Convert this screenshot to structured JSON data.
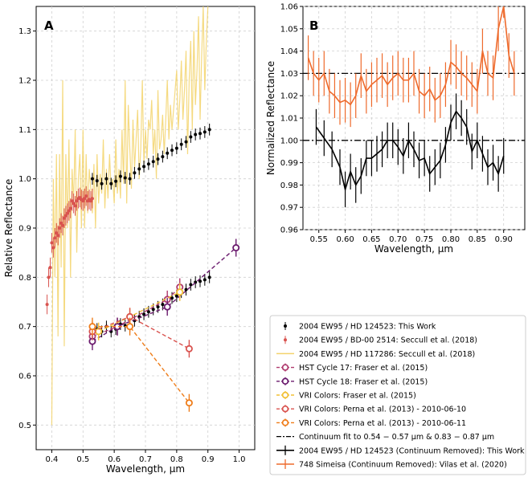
{
  "chart_data": [
    {
      "panel": "A",
      "type": "scatter",
      "xlabel": "Wavelength, μm",
      "ylabel": "Relative Reflectance",
      "xlim": [
        0.35,
        1.05
      ],
      "ylim": [
        0.45,
        1.35
      ],
      "xticks": [
        "0.4",
        "0.5",
        "0.6",
        "0.7",
        "0.8",
        "0.9",
        "1.0"
      ],
      "yticks": [
        "0.5",
        "0.6",
        "0.7",
        "0.8",
        "0.9",
        "1.0",
        "1.1",
        "1.2",
        "1.3"
      ],
      "series": [
        {
          "name": "2004 EW95 / HD 124523: This Work (upper)",
          "color": "#000000",
          "style": "errorbar",
          "x": [
            0.53,
            0.545,
            0.56,
            0.575,
            0.59,
            0.605,
            0.62,
            0.635,
            0.65,
            0.665,
            0.68,
            0.695,
            0.71,
            0.725,
            0.74,
            0.755,
            0.77,
            0.785,
            0.8,
            0.815,
            0.83,
            0.845,
            0.86,
            0.875,
            0.89,
            0.905
          ],
          "y": [
            1.0,
            0.996,
            0.99,
            1.0,
            0.99,
            0.995,
            1.005,
            1.002,
            1.0,
            1.012,
            1.02,
            1.025,
            1.03,
            1.035,
            1.04,
            1.045,
            1.052,
            1.058,
            1.062,
            1.07,
            1.075,
            1.085,
            1.09,
            1.092,
            1.095,
            1.1
          ]
        },
        {
          "name": "2004 EW95 / HD 124523: This Work (lower)",
          "color": "#000000",
          "style": "errorbar",
          "x": [
            0.53,
            0.545,
            0.56,
            0.575,
            0.59,
            0.605,
            0.62,
            0.635,
            0.65,
            0.665,
            0.68,
            0.695,
            0.71,
            0.725,
            0.74,
            0.755,
            0.77,
            0.785,
            0.8,
            0.815,
            0.83,
            0.845,
            0.86,
            0.875,
            0.89,
            0.905
          ],
          "y": [
            0.7,
            0.695,
            0.69,
            0.7,
            0.69,
            0.695,
            0.705,
            0.702,
            0.7,
            0.712,
            0.72,
            0.725,
            0.73,
            0.735,
            0.74,
            0.745,
            0.752,
            0.758,
            0.762,
            0.77,
            0.775,
            0.785,
            0.79,
            0.792,
            0.795,
            0.8
          ]
        },
        {
          "name": "2004 EW95 / BD-00 2514: Seccull et al. (2018)",
          "color": "#d9534f",
          "style": "errorbar",
          "x": [
            0.385,
            0.39,
            0.395,
            0.4,
            0.405,
            0.41,
            0.415,
            0.42,
            0.425,
            0.43,
            0.435,
            0.44,
            0.445,
            0.45,
            0.455,
            0.46,
            0.465,
            0.47,
            0.475,
            0.48,
            0.485,
            0.49,
            0.495,
            0.5,
            0.505,
            0.51,
            0.515,
            0.52,
            0.525,
            0.53
          ],
          "y": [
            0.745,
            0.8,
            0.82,
            0.87,
            0.86,
            0.88,
            0.89,
            0.885,
            0.9,
            0.91,
            0.905,
            0.92,
            0.925,
            0.93,
            0.935,
            0.94,
            0.955,
            0.95,
            0.945,
            0.955,
            0.96,
            0.962,
            0.958,
            0.955,
            0.96,
            0.965,
            0.955,
            0.958,
            0.955,
            0.96
          ]
        },
        {
          "name": "2004 EW95 / HD 117286: Seccull et al. (2018)",
          "color": "#f3d36b",
          "style": "line",
          "x": [
            0.4,
            0.405,
            0.41,
            0.415,
            0.42,
            0.425,
            0.43,
            0.435,
            0.44,
            0.445,
            0.45,
            0.455,
            0.46,
            0.465,
            0.47,
            0.475,
            0.48,
            0.485,
            0.49,
            0.495,
            0.5,
            0.505,
            0.51,
            0.515,
            0.52,
            0.525,
            0.53,
            0.535,
            0.54,
            0.545,
            0.55,
            0.555,
            0.56,
            0.565,
            0.57,
            0.575,
            0.58,
            0.585,
            0.59,
            0.595,
            0.6,
            0.605,
            0.61,
            0.615,
            0.62,
            0.625,
            0.63,
            0.635,
            0.64,
            0.645,
            0.65,
            0.655,
            0.66,
            0.665,
            0.67,
            0.675,
            0.68,
            0.685,
            0.69,
            0.695,
            0.7,
            0.705,
            0.71,
            0.715,
            0.72,
            0.725,
            0.73,
            0.735,
            0.74,
            0.745,
            0.75,
            0.755,
            0.76,
            0.765,
            0.77,
            0.775,
            0.78,
            0.785,
            0.79,
            0.795,
            0.8,
            0.805,
            0.81,
            0.815,
            0.82,
            0.825,
            0.83,
            0.835,
            0.84,
            0.845,
            0.85,
            0.855,
            0.86,
            0.865,
            0.87,
            0.875,
            0.88,
            0.885,
            0.89,
            0.895,
            0.9
          ],
          "y": [
            0.5,
            1.0,
            0.8,
            1.05,
            0.68,
            1.05,
            0.82,
            1.2,
            0.66,
            1.05,
            0.9,
            1.08,
            0.8,
            1.02,
            0.95,
            1.1,
            0.85,
            1.0,
            1.05,
            0.9,
            1.1,
            0.9,
            1.05,
            0.93,
            1.02,
            0.98,
            0.93,
            1.03,
            0.9,
            1.05,
            0.95,
            1.01,
            0.97,
            1.08,
            0.94,
            1.02,
            0.96,
            1.05,
            0.98,
            1.0,
            0.95,
            1.08,
            0.97,
            1.02,
            0.96,
            1.1,
            0.99,
            1.2,
            0.95,
            1.15,
            1.06,
            0.98,
            1.12,
            1.02,
            1.08,
            1.14,
            1.0,
            1.06,
            1.2,
            1.03,
            1.1,
            1.04,
            1.12,
            1.1,
            1.16,
            1.05,
            1.1,
            1.0,
            1.18,
            1.06,
            1.08,
            1.13,
            1.05,
            1.12,
            1.2,
            1.08,
            1.15,
            1.1,
            1.14,
            1.18,
            1.22,
            1.1,
            1.16,
            1.24,
            1.12,
            1.18,
            1.26,
            1.05,
            1.2,
            1.28,
            1.1,
            1.3,
            1.15,
            1.22,
            1.33,
            1.12,
            1.25,
            1.35,
            1.18,
            1.28,
            1.35
          ]
        },
        {
          "name": "HST Cycle 17: Fraser et al. (2015)",
          "color": "#b03a6e",
          "style": "dashed-marker",
          "x": [
            0.53,
            0.61,
            0.77,
            0.81
          ],
          "y": [
            0.68,
            0.7,
            0.755,
            0.78
          ]
        },
        {
          "name": "HST Cycle 18: Fraser et al. (2015)",
          "color": "#6b1b6e",
          "style": "dashed-marker",
          "x": [
            0.53,
            0.61,
            0.77,
            0.99
          ],
          "y": [
            0.67,
            0.7,
            0.74,
            0.86
          ]
        },
        {
          "name": "VRI Colors: Fraser et al. (2015)",
          "color": "#f2c037",
          "style": "dashed-marker",
          "x": [
            0.55,
            0.65,
            0.81
          ],
          "y": [
            0.69,
            0.72,
            0.77
          ]
        },
        {
          "name": "VRI Colors: Perna et al. (2013) - 2010-06-10",
          "color": "#d9534f",
          "style": "dashed-marker",
          "x": [
            0.53,
            0.65,
            0.84
          ],
          "y": [
            0.69,
            0.72,
            0.655
          ]
        },
        {
          "name": "VRI Colors: Perna et al. (2013) - 2010-06-11",
          "color": "#ef7d1a",
          "style": "dashed-marker",
          "x": [
            0.53,
            0.65,
            0.84
          ],
          "y": [
            0.7,
            0.7,
            0.545
          ]
        }
      ]
    },
    {
      "panel": "B",
      "type": "line",
      "xlabel": "Wavelength, μm",
      "ylabel": "Normalized Reflectance",
      "xlim": [
        0.52,
        0.94
      ],
      "ylim": [
        0.96,
        1.06
      ],
      "xticks": [
        "0.55",
        "0.60",
        "0.65",
        "0.70",
        "0.75",
        "0.80",
        "0.85",
        "0.90"
      ],
      "yticks": [
        "0.96",
        "0.97",
        "0.98",
        "0.99",
        "1.00",
        "1.01",
        "1.02",
        "1.03",
        "1.04",
        "1.05",
        "1.06"
      ],
      "continuum_levels": [
        1.0,
        1.03
      ],
      "series": [
        {
          "name": "2004 EW95 / HD 124523 (Continuum Removed): This Work",
          "color": "#000000",
          "x": [
            0.545,
            0.56,
            0.575,
            0.59,
            0.6,
            0.61,
            0.62,
            0.63,
            0.64,
            0.65,
            0.66,
            0.67,
            0.68,
            0.69,
            0.7,
            0.71,
            0.72,
            0.73,
            0.74,
            0.75,
            0.76,
            0.77,
            0.78,
            0.79,
            0.8,
            0.81,
            0.82,
            0.83,
            0.84,
            0.85,
            0.86,
            0.87,
            0.88,
            0.89,
            0.9
          ],
          "y": [
            1.006,
            1.001,
            0.996,
            0.988,
            0.978,
            0.986,
            0.98,
            0.984,
            0.992,
            0.992,
            0.994,
            0.996,
            1.0,
            1.0,
            0.997,
            0.993,
            1.0,
            0.996,
            0.991,
            0.992,
            0.985,
            0.988,
            0.991,
            0.998,
            1.008,
            1.013,
            1.01,
            1.006,
            0.995,
            1.0,
            0.994,
            0.988,
            0.99,
            0.985,
            0.993
          ]
        },
        {
          "name": "748 Simeisa (Continuum Removed): Vilas et al. (2020)",
          "color": "#ee6a2c",
          "x": [
            0.53,
            0.54,
            0.55,
            0.56,
            0.57,
            0.58,
            0.59,
            0.6,
            0.61,
            0.62,
            0.63,
            0.64,
            0.65,
            0.66,
            0.67,
            0.68,
            0.69,
            0.7,
            0.71,
            0.72,
            0.73,
            0.74,
            0.75,
            0.76,
            0.77,
            0.78,
            0.79,
            0.8,
            0.81,
            0.82,
            0.83,
            0.84,
            0.85,
            0.86,
            0.87,
            0.88,
            0.89,
            0.9,
            0.91,
            0.92
          ],
          "y": [
            1.037,
            1.03,
            1.027,
            1.03,
            1.022,
            1.02,
            1.017,
            1.018,
            1.016,
            1.02,
            1.029,
            1.022,
            1.025,
            1.027,
            1.029,
            1.025,
            1.028,
            1.03,
            1.027,
            1.027,
            1.03,
            1.022,
            1.02,
            1.023,
            1.018,
            1.02,
            1.025,
            1.035,
            1.033,
            1.03,
            1.028,
            1.025,
            1.022,
            1.04,
            1.03,
            1.028,
            1.05,
            1.065,
            1.038,
            1.03
          ]
        }
      ]
    }
  ],
  "legend": [
    {
      "label": "2004 EW95 / HD 124523: This Work",
      "color": "#000000",
      "kind": "errorbar"
    },
    {
      "label": "2004 EW95 / BD-00 2514: Seccull et al. (2018)",
      "color": "#d9534f",
      "kind": "errorbar"
    },
    {
      "label": "2004 EW95 / HD 117286: Seccull et al. (2018)",
      "color": "#f3d36b",
      "kind": "line"
    },
    {
      "label": "HST Cycle 17: Fraser et al. (2015)",
      "color": "#b03a6e",
      "kind": "open"
    },
    {
      "label": "HST Cycle 18: Fraser et al. (2015)",
      "color": "#6b1b6e",
      "kind": "open"
    },
    {
      "label": "VRI Colors: Fraser et al. (2015)",
      "color": "#f2c037",
      "kind": "open"
    },
    {
      "label": "VRI Colors: Perna et al. (2013) - 2010-06-10",
      "color": "#d9534f",
      "kind": "open"
    },
    {
      "label": "VRI Colors: Perna et al. (2013) - 2010-06-11",
      "color": "#ef7d1a",
      "kind": "open"
    },
    {
      "label": "Continuum fit to 0.54 − 0.57 μm & 0.83 − 0.87 μm",
      "color": "#000000",
      "kind": "dashdot"
    },
    {
      "label": "2004 EW95 / HD 124523 (Continuum Removed): This Work",
      "color": "#000000",
      "kind": "line-err"
    },
    {
      "label": "748 Simeisa (Continuum Removed): Vilas et al. (2020)",
      "color": "#ee6a2c",
      "kind": "line-err"
    }
  ]
}
